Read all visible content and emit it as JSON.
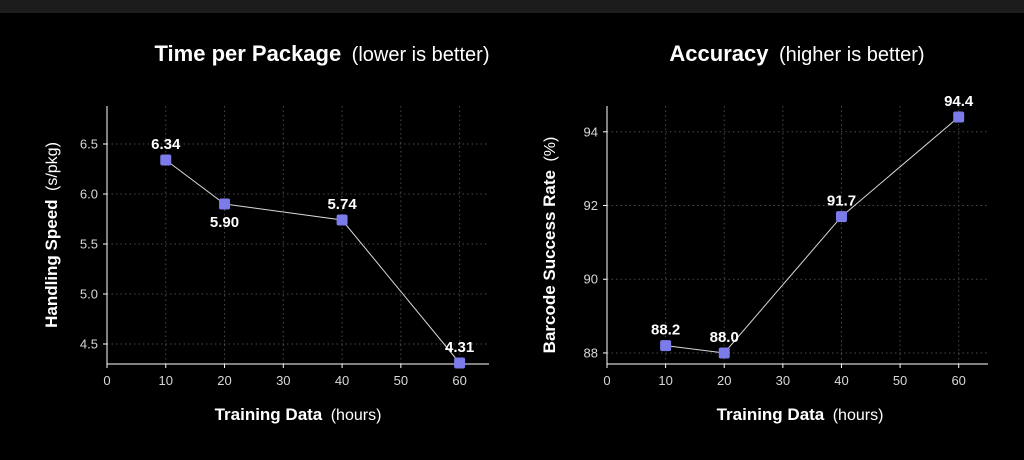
{
  "colors": {
    "background": "#000000",
    "marker": "#7b7bea",
    "line": "#d9d9d9",
    "grid": "#4a4a4a",
    "text": "#ffffff"
  },
  "chart_data": [
    {
      "type": "line",
      "title_main": "Time per Package",
      "title_sub": "(lower is better)",
      "xlabel_main": "Training Data",
      "xlabel_sub": "(hours)",
      "ylabel_main": "Handling Speed",
      "ylabel_sub": "(s/pkg)",
      "x": [
        10,
        20,
        40,
        60
      ],
      "y": [
        6.34,
        5.9,
        5.74,
        4.31
      ],
      "data_labels": [
        "6.34",
        "5.90",
        "5.74",
        "4.31"
      ],
      "label_positions": [
        "above",
        "below",
        "above",
        "above"
      ],
      "xlim": [
        0,
        65
      ],
      "ylim": [
        4.3,
        6.88
      ],
      "xticks": [
        0,
        10,
        20,
        30,
        40,
        50,
        60
      ],
      "yticks": [
        4.5,
        5.0,
        5.5,
        6.0,
        6.5
      ],
      "ytick_labels": [
        "4.5",
        "5.0",
        "5.5",
        "6.0",
        "6.5"
      ],
      "grid": true
    },
    {
      "type": "line",
      "title_main": "Accuracy",
      "title_sub": "(higher is better)",
      "xlabel_main": "Training Data",
      "xlabel_sub": "(hours)",
      "ylabel_main": "Barcode Success Rate",
      "ylabel_sub": "(%)",
      "x": [
        10,
        20,
        40,
        60
      ],
      "y": [
        88.2,
        88.0,
        91.7,
        94.4
      ],
      "data_labels": [
        "88.2",
        "88.0",
        "91.7",
        "94.4"
      ],
      "label_positions": [
        "above",
        "above",
        "above",
        "above"
      ],
      "xlim": [
        0,
        65
      ],
      "ylim": [
        87.7,
        94.7
      ],
      "xticks": [
        0,
        10,
        20,
        30,
        40,
        50,
        60
      ],
      "yticks": [
        88,
        90,
        92,
        94
      ],
      "ytick_labels": [
        "88",
        "90",
        "92",
        "94"
      ],
      "grid": true
    }
  ]
}
